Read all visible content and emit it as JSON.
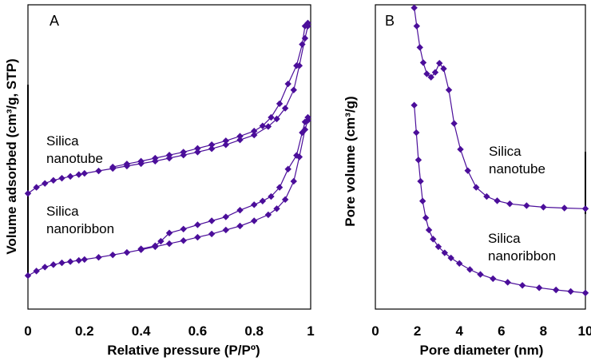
{
  "chart_data": [
    {
      "type": "scatter",
      "panel_label": "A",
      "xlabel": "Relative pressure (P/Pº)",
      "ylabel": "Volume adsorbed (cm³/g, STP)",
      "xlim": [
        0,
        1
      ],
      "xticks": [
        0,
        0.2,
        0.4,
        0.6,
        0.8,
        1
      ],
      "xtick_labels": [
        "0",
        "0.2",
        "0.4",
        "0.6",
        "0.8",
        "1"
      ],
      "ylim": [
        0,
        100
      ],
      "y_units": "arbitrary (offset curves, no tick labels)",
      "grid": false,
      "marker_color": "#4B0E9A",
      "annotations": [
        "Silica\nnanotube",
        "Silica\nnanoribbon"
      ],
      "series": [
        {
          "name": "Silica nanotube adsorption",
          "points": [
            [
              0.0,
              38.0
            ],
            [
              0.03,
              40.0
            ],
            [
              0.06,
              41.3
            ],
            [
              0.09,
              42.3
            ],
            [
              0.12,
              43.0
            ],
            [
              0.15,
              43.6
            ],
            [
              0.18,
              44.2
            ],
            [
              0.2,
              44.6
            ],
            [
              0.25,
              45.4
            ],
            [
              0.3,
              46.2
            ],
            [
              0.35,
              47.0
            ],
            [
              0.4,
              47.8
            ],
            [
              0.45,
              48.6
            ],
            [
              0.5,
              49.6
            ],
            [
              0.55,
              50.6
            ],
            [
              0.6,
              51.6
            ],
            [
              0.65,
              52.7
            ],
            [
              0.7,
              54.0
            ],
            [
              0.75,
              55.6
            ],
            [
              0.8,
              57.2
            ],
            [
              0.85,
              60.0
            ],
            [
              0.88,
              62.5
            ],
            [
              0.91,
              66.0
            ],
            [
              0.94,
              72.0
            ],
            [
              0.96,
              80.0
            ],
            [
              0.98,
              89.0
            ],
            [
              0.99,
              93.0
            ]
          ]
        },
        {
          "name": "Silica nanotube desorption",
          "points": [
            [
              0.99,
              94.0
            ],
            [
              0.98,
              93.0
            ],
            [
              0.97,
              87.0
            ],
            [
              0.95,
              80.0
            ],
            [
              0.92,
              74.0
            ],
            [
              0.89,
              67.5
            ],
            [
              0.86,
              63.0
            ],
            [
              0.83,
              60.2
            ],
            [
              0.8,
              58.5
            ],
            [
              0.75,
              56.8
            ],
            [
              0.7,
              55.3
            ],
            [
              0.65,
              54.0
            ],
            [
              0.6,
              52.8
            ],
            [
              0.55,
              51.6
            ],
            [
              0.5,
              50.6
            ],
            [
              0.45,
              49.6
            ],
            [
              0.4,
              48.6
            ],
            [
              0.35,
              47.7
            ],
            [
              0.3,
              46.7
            ]
          ]
        },
        {
          "name": "Silica nanoribbon adsorption",
          "points": [
            [
              0.0,
              11.0
            ],
            [
              0.03,
              12.5
            ],
            [
              0.06,
              13.8
            ],
            [
              0.09,
              14.6
            ],
            [
              0.12,
              15.2
            ],
            [
              0.15,
              15.6
            ],
            [
              0.18,
              16.0
            ],
            [
              0.2,
              16.3
            ],
            [
              0.25,
              17.0
            ],
            [
              0.3,
              17.8
            ],
            [
              0.35,
              18.6
            ],
            [
              0.4,
              19.5
            ],
            [
              0.45,
              20.5
            ],
            [
              0.5,
              21.5
            ],
            [
              0.55,
              22.5
            ],
            [
              0.6,
              23.6
            ],
            [
              0.65,
              24.7
            ],
            [
              0.7,
              26.0
            ],
            [
              0.75,
              27.3
            ],
            [
              0.8,
              29.0
            ],
            [
              0.85,
              31.0
            ],
            [
              0.88,
              33.0
            ],
            [
              0.91,
              36.0
            ],
            [
              0.94,
              42.0
            ],
            [
              0.96,
              50.0
            ],
            [
              0.98,
              59.0
            ],
            [
              0.99,
              62.0
            ]
          ]
        },
        {
          "name": "Silica nanoribbon desorption",
          "points": [
            [
              0.99,
              63.0
            ],
            [
              0.98,
              61.5
            ],
            [
              0.97,
              58.0
            ],
            [
              0.95,
              50.5
            ],
            [
              0.92,
              46.0
            ],
            [
              0.89,
              40.0
            ],
            [
              0.86,
              37.0
            ],
            [
              0.83,
              35.5
            ],
            [
              0.8,
              34.3
            ],
            [
              0.75,
              32.5
            ],
            [
              0.7,
              30.3
            ],
            [
              0.65,
              29.0
            ],
            [
              0.6,
              27.7
            ],
            [
              0.55,
              26.3
            ],
            [
              0.5,
              25.0
            ],
            [
              0.47,
              22.3
            ],
            [
              0.45,
              20.8
            ],
            [
              0.4,
              19.8
            ]
          ]
        }
      ]
    },
    {
      "type": "line",
      "panel_label": "B",
      "xlabel": "Pore diameter (nm)",
      "ylabel": "Pore volume (cm³/g)",
      "xlim": [
        0,
        10
      ],
      "xticks": [
        0,
        2,
        4,
        6,
        8,
        10
      ],
      "xtick_labels": [
        "0",
        "2",
        "4",
        "6",
        "8",
        "10"
      ],
      "ylim": [
        0,
        100
      ],
      "y_units": "arbitrary (offset curves, no tick labels)",
      "grid": false,
      "marker_color": "#4B0E9A",
      "annotations": [
        "Silica\nnanotube",
        "Silica\nnanoribbon"
      ],
      "series": [
        {
          "name": "Silica nanotube",
          "x": [
            1.85,
            1.97,
            2.12,
            2.28,
            2.45,
            2.65,
            2.85,
            3.05,
            3.25,
            3.5,
            3.75,
            4.05,
            4.4,
            4.8,
            5.3,
            5.8,
            6.4,
            7.2,
            8.0,
            9.0,
            10.0
          ],
          "y": [
            99.0,
            93.0,
            86.0,
            81.0,
            77.3,
            76.2,
            77.8,
            80.8,
            79.0,
            72.0,
            61.0,
            52.5,
            45.5,
            40.0,
            37.0,
            35.6,
            34.6,
            34.0,
            33.5,
            33.2,
            33.0
          ]
        },
        {
          "name": "Silica nanoribbon",
          "x": [
            1.85,
            1.95,
            2.05,
            2.15,
            2.25,
            2.4,
            2.55,
            2.75,
            3.0,
            3.3,
            3.6,
            4.0,
            4.5,
            5.0,
            5.6,
            6.3,
            7.0,
            7.8,
            8.6,
            9.3,
            10.0
          ],
          "y": [
            67.0,
            58.0,
            49.0,
            42.0,
            35.5,
            30.0,
            26.0,
            23.0,
            20.5,
            18.5,
            16.8,
            15.0,
            13.0,
            11.4,
            10.0,
            8.8,
            7.8,
            7.0,
            6.3,
            5.8,
            5.3
          ]
        }
      ]
    }
  ]
}
